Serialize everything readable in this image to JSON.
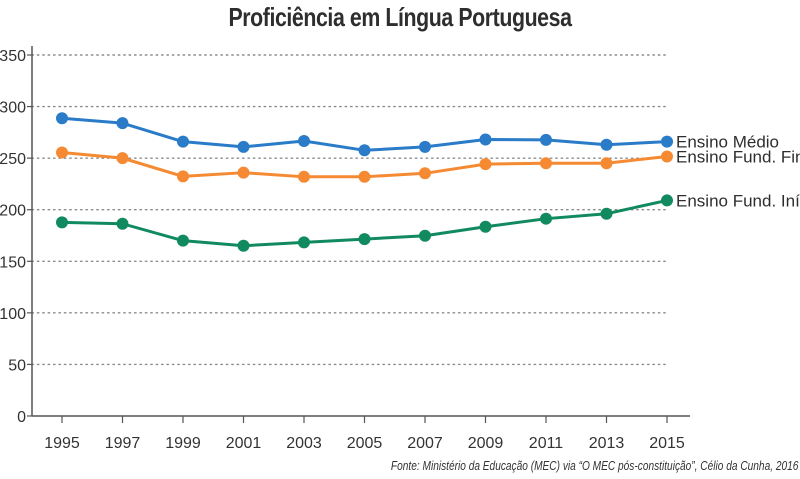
{
  "chart_data": {
    "type": "line",
    "title": "Proficiência em Língua Portuguesa",
    "xlabel": "",
    "ylabel": "",
    "x": [
      1995,
      1997,
      1999,
      2001,
      2003,
      2005,
      2007,
      2009,
      2011,
      2013,
      2015
    ],
    "x_tick_labels": [
      "1995",
      "1997",
      "1999",
      "2001",
      "2003",
      "2005",
      "2007",
      "2009",
      "2011",
      "2013",
      "2015"
    ],
    "ylim": [
      0,
      350
    ],
    "y_ticks": [
      0,
      50,
      100,
      150,
      200,
      250,
      300,
      350
    ],
    "y_tick_labels": [
      "0",
      "50",
      "100",
      "150",
      "200",
      "250",
      "300",
      "350"
    ],
    "grid": "horizontal-dotted",
    "legend": "inline-right",
    "series": [
      {
        "name": "Ensino Médio",
        "color": "#2a7bc8",
        "values": [
          288.7,
          283.9,
          266.0,
          260.9,
          266.6,
          257.6,
          260.9,
          268.1,
          267.7,
          263.0,
          266.0
        ]
      },
      {
        "name": "Ensino Fund. Final",
        "color": "#f58a33",
        "values": [
          255.5,
          250.0,
          232.3,
          235.9,
          231.9,
          231.9,
          235.3,
          244.2,
          245.1,
          245.1,
          251.6
        ]
      },
      {
        "name": "Ensino Fund. Início",
        "color": "#128a60",
        "values": [
          187.7,
          186.4,
          170.0,
          165.1,
          168.3,
          171.5,
          174.8,
          183.5,
          191.3,
          196.1,
          209.0
        ]
      }
    ],
    "source": "Fonte: Ministério da Educação (MEC) via “O MEC pós-constituição”, Célio da Cunha, 2016"
  }
}
